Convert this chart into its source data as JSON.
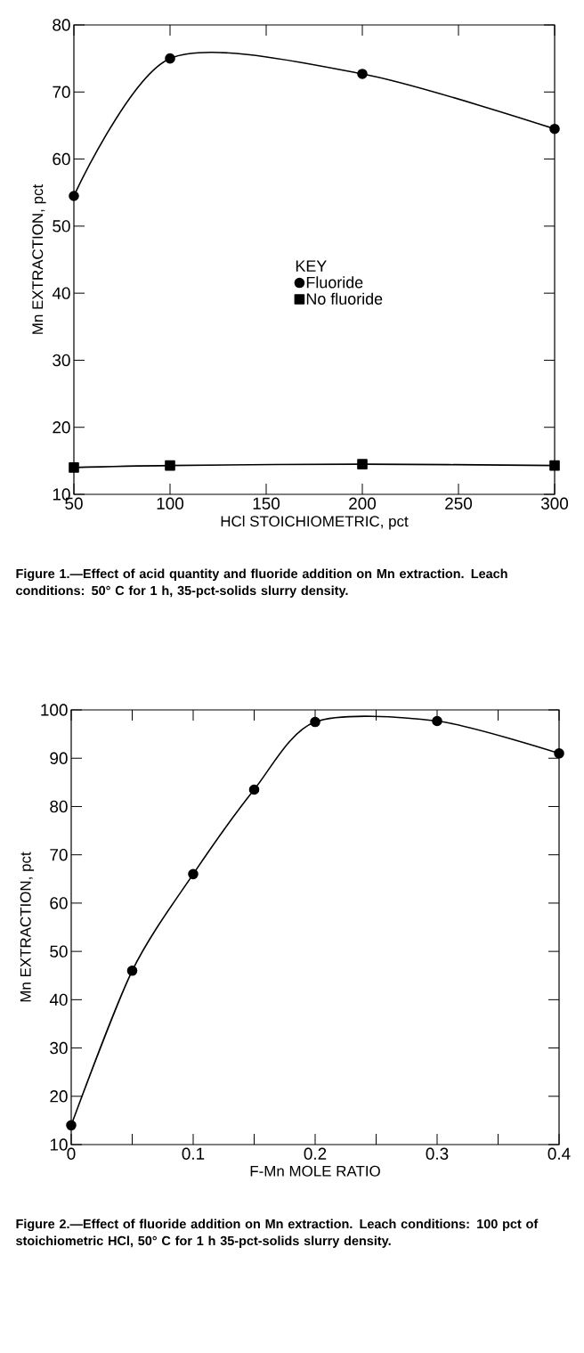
{
  "chart_data": [
    {
      "type": "line",
      "xlabel": "HCl STOICHIOMETRIC, pct",
      "ylabel": "Mn EXTRACTION, pct",
      "x": [
        50,
        100,
        200,
        300
      ],
      "xlim": [
        50,
        300
      ],
      "ylim": [
        10,
        80
      ],
      "xticks": [
        50,
        100,
        150,
        200,
        250,
        300
      ],
      "yticks": [
        10,
        20,
        30,
        40,
        50,
        60,
        70,
        80
      ],
      "legend": "center",
      "legend_title": "KEY",
      "line_style": "solid",
      "series": [
        {
          "name": "Fluoride",
          "color": "#000000",
          "marker": "circle",
          "values": [
            54.5,
            75,
            72.7,
            64.5
          ]
        },
        {
          "name": "No fluoride",
          "color": "#000000",
          "marker": "square",
          "values": [
            14,
            14.3,
            14.5,
            14.3
          ]
        }
      ],
      "annotations": [
        "Figure 1.—Effect of acid quantity and fluoride addition on Mn extraction. Leach conditions: 50° C for 1 h, 35-pct-solids slurry density."
      ]
    },
    {
      "type": "line",
      "xlabel": "F-Mn MOLE RATIO",
      "ylabel": "Mn EXTRACTION, pct",
      "x": [
        0,
        0.05,
        0.1,
        0.15,
        0.2,
        0.3,
        0.4
      ],
      "xlim": [
        0,
        0.4
      ],
      "ylim": [
        10,
        100
      ],
      "xticks": [
        0,
        {
          "value": 0.05,
          "label": null
        },
        0.1,
        {
          "value": 0.15,
          "label": null
        },
        0.2,
        {
          "value": 0.25,
          "label": null
        },
        0.3,
        {
          "value": 0.35,
          "label": null
        },
        0.4
      ],
      "yticks": [
        10,
        20,
        30,
        40,
        50,
        60,
        70,
        80,
        90,
        100
      ],
      "line_style": "solid",
      "series": [
        {
          "color": "#000000",
          "marker": "circle",
          "values": [
            14,
            46,
            66,
            83.5,
            97.5,
            97.7,
            91
          ]
        }
      ],
      "annotations": [
        "Figure 2.—Effect of fluoride addition on Mn extraction. Leach conditions: 100 pct of stoichiometric HCl, 50° C for 1 h 35-pct-solids slurry density."
      ]
    }
  ]
}
